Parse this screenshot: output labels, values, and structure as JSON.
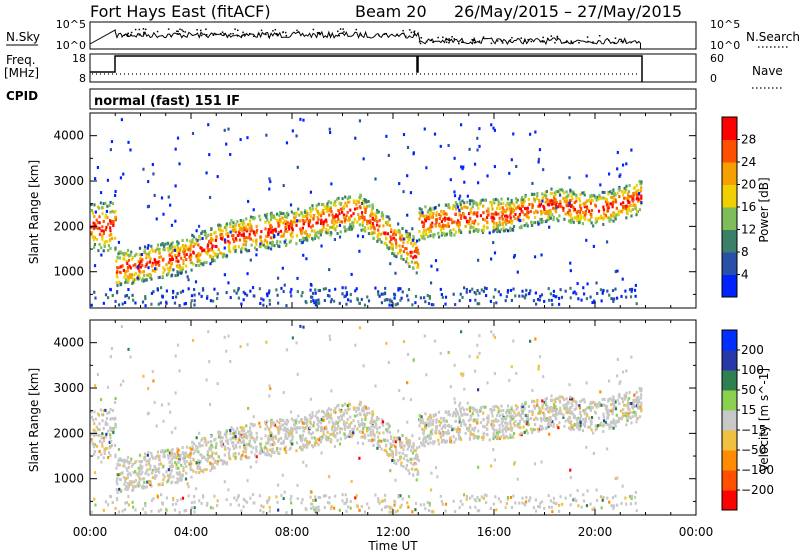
{
  "header": {
    "station": "Fort Hays East (fitACF)",
    "beam": "Beam 20",
    "dates": "26/May/2015 – 27/May/2015"
  },
  "program": "normal (fast) 151 IF",
  "labels": {
    "nsky": "N.Sky",
    "nsearch": "N.Search",
    "freq": "Freq.",
    "mhz": "[MHz]",
    "nave": "Nave",
    "cpid": "CPID"
  },
  "aux_ticks": {
    "noise_left": [
      "10^5",
      "10^0"
    ],
    "noise_right": [
      "10^5",
      "10^0"
    ],
    "freq": [
      "18",
      "8"
    ],
    "nave": [
      "60",
      "0"
    ]
  },
  "colors": {
    "power": [
      "#0022ff",
      "#2850a8",
      "#3a8068",
      "#7fbd5a",
      "#f0d000",
      "#f5a000",
      "#ff5000",
      "#ff0000"
    ],
    "velocity": [
      "#ff0000",
      "#ff5000",
      "#ff8c00",
      "#f0c040",
      "#c8c8c8",
      "#8cd050",
      "#2e8050",
      "#2838a8",
      "#0030ff"
    ]
  },
  "chart_data": [
    {
      "type": "heatmap",
      "title": "Power",
      "xlabel": "",
      "ylabel": "Slant Range [km]",
      "x_tick_labels": [
        "00:00",
        "04:00",
        "08:00",
        "12:00",
        "16:00",
        "20:00",
        "00:00"
      ],
      "y_tick_labels": [
        "1000",
        "2000",
        "3000",
        "4000"
      ],
      "xlim_hours": [
        0,
        24
      ],
      "ylim": [
        200,
        4500
      ],
      "colorbar_label": "Power [dB]",
      "colorbar_ticks": [
        "4",
        "8",
        "12",
        "16",
        "20",
        "24",
        "28"
      ],
      "bands": [
        {
          "name": "main-early",
          "t_start": 1.0,
          "t_end": 13.0,
          "range_center": [
            1050,
            1300,
            1800,
            2000,
            2350,
            1300
          ],
          "thickness": 350
        },
        {
          "name": "main-late",
          "t_start": 13.0,
          "t_end": 21.8,
          "range_center": [
            2050,
            2200,
            2250,
            2500,
            2350,
            2650
          ],
          "thickness": 330
        },
        {
          "name": "upper-early",
          "t_start": 0.0,
          "t_end": 1.0,
          "range_center": [
            2000,
            2000
          ],
          "thickness": 500
        }
      ]
    },
    {
      "type": "heatmap",
      "title": "Velocity",
      "xlabel": "Time UT",
      "ylabel": "Slant Range [km]",
      "x_tick_labels": [
        "00:00",
        "04:00",
        "08:00",
        "12:00",
        "16:00",
        "20:00",
        "00:00"
      ],
      "y_tick_labels": [
        "1000",
        "2000",
        "3000",
        "4000"
      ],
      "xlim_hours": [
        0,
        24
      ],
      "ylim": [
        200,
        4500
      ],
      "colorbar_label": "Velocity [m s^-1]",
      "colorbar_ticks": [
        "200",
        "100",
        "50",
        "15",
        "−15",
        "−50",
        "−100",
        "−200"
      ]
    }
  ]
}
